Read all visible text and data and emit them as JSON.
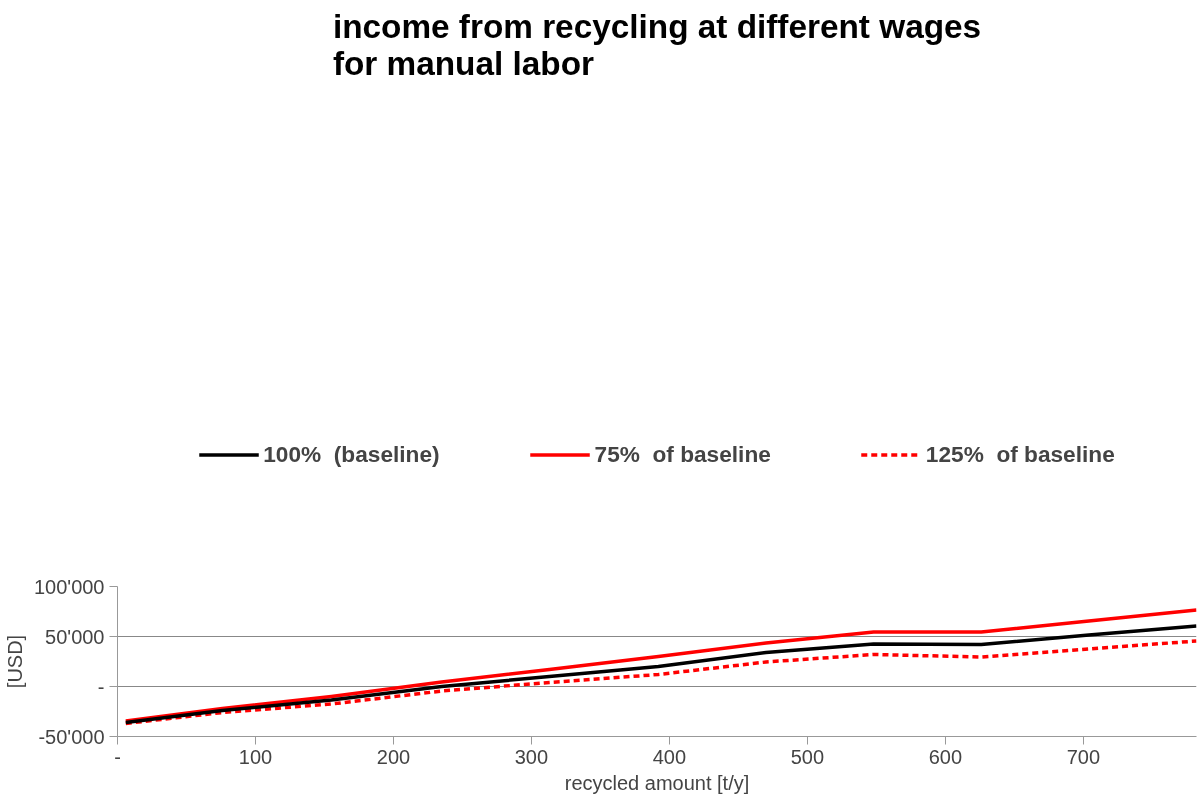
{
  "chart_data": {
    "type": "line",
    "title": "income from recycling at different wages\nfor manual labor",
    "xlabel": "recycled amount [t/y]",
    "ylabel": "[USD]",
    "x": [
      6,
      76,
      155,
      235,
      313,
      392,
      470,
      548,
      626,
      704,
      782
    ],
    "series": [
      {
        "name": "100%  (baseline)",
        "color": "#000000",
        "line_style": "solid",
        "values": [
          -36000,
          -24000,
          -13500,
          0,
          10000,
          20000,
          34000,
          42500,
          42000,
          51500,
          60500
        ]
      },
      {
        "name": "75%  of baseline",
        "color": "#ff0000",
        "line_style": "solid",
        "values": [
          -34500,
          -22000,
          -10000,
          4500,
          17000,
          30000,
          43500,
          54500,
          54500,
          65500,
          76500
        ]
      },
      {
        "name": "125%  of baseline",
        "color": "#ff0000",
        "line_style": "dashed",
        "values": [
          -37000,
          -26000,
          -17500,
          -4500,
          4000,
          12000,
          24500,
          32000,
          29500,
          37500,
          45500
        ]
      }
    ],
    "xlim": [
      0,
      782
    ],
    "ylim": [
      -50000,
      100000
    ],
    "xticks": [
      {
        "value": 0,
        "label": "-"
      },
      100,
      200,
      300,
      400,
      500,
      600,
      700
    ],
    "yticks": [
      {
        "value": -50000,
        "label": "-50'000"
      },
      {
        "value": 0,
        "label": "-"
      },
      {
        "value": 50000,
        "label": "50'000"
      },
      {
        "value": 100000,
        "label": "100'000"
      }
    ],
    "grid": "y",
    "legend": "top",
    "marker": "none"
  }
}
